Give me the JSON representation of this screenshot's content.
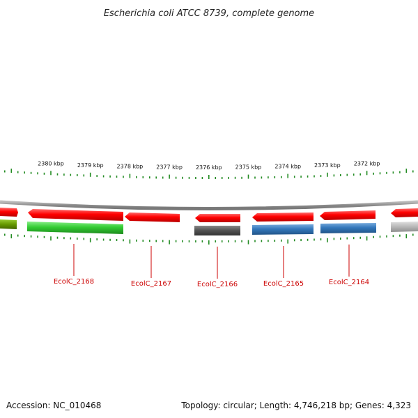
{
  "title": "Escherichia coli ATCC 8739, complete genome",
  "footer": {
    "accession": "Accession: NC_010468",
    "summary": "Topology: circular; Length: 4,746,218 bp; Genes: 4,323"
  },
  "colors": {
    "red": "#ff0000",
    "green": "#33cc33",
    "olive": "#669900",
    "dark_gray": "#555555",
    "blue": "#3377bb",
    "light_gray": "#bbbbbb",
    "tick_green": "#228b22",
    "label_red": "#cc0000",
    "backbone": "#999999"
  },
  "kbp_labels": [
    "2380 kbp",
    "2379 kbp",
    "2378 kbp",
    "2377 kbp",
    "2376 kbp",
    "2375 kbp",
    "2374 kbp",
    "2373 kbp",
    "2372 kbp"
  ],
  "gene_labels": [
    "EcolC_2168",
    "EcolC_2167",
    "EcolC_2166",
    "EcolC_2165",
    "EcolC_2164"
  ]
}
